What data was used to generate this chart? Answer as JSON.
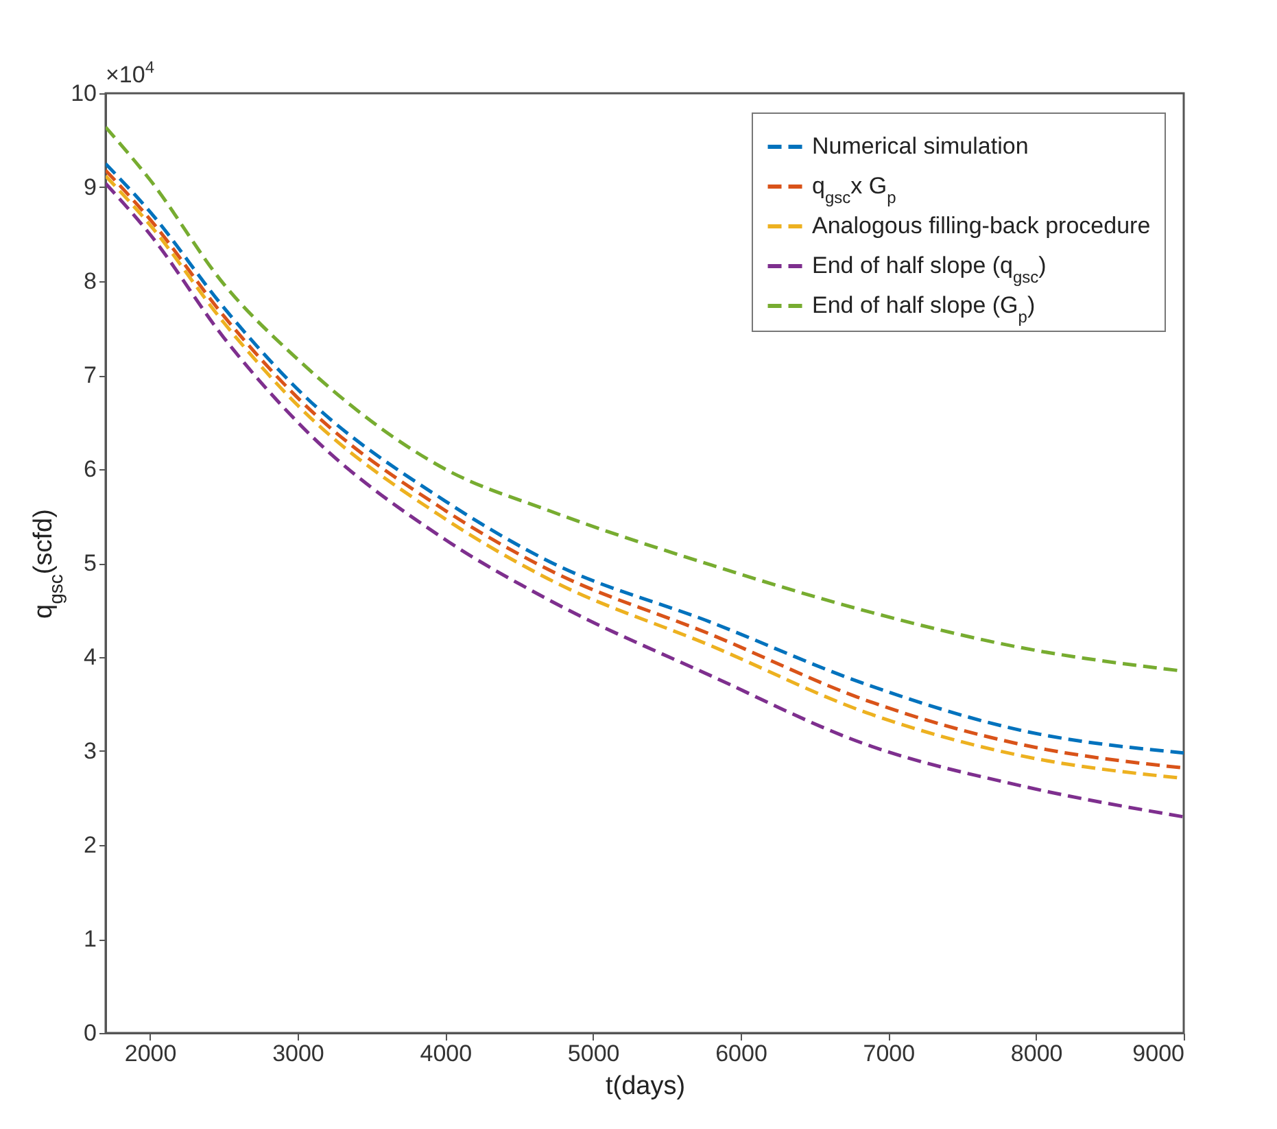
{
  "chart_data": {
    "type": "line",
    "xlabel": "t(days)",
    "ylabel": "q$_{gsc}$(scfd)",
    "annotations": [
      "×10$^{4}$"
    ],
    "x": [
      1700,
      2000,
      2500,
      3000,
      4000,
      4700,
      5800,
      6850,
      7900,
      9000
    ],
    "series": [
      {
        "name": "Numerical simulation",
        "color": "#0072bd",
        "values": [
          9.25,
          8.74,
          7.72,
          6.85,
          5.66,
          5.02,
          4.37,
          3.71,
          3.22,
          2.98
        ]
      },
      {
        "name": "q$_{gsc}$x G$_{p}$",
        "color": "#d95319",
        "values": [
          9.18,
          8.66,
          7.63,
          6.76,
          5.56,
          4.93,
          4.24,
          3.54,
          3.07,
          2.82
        ]
      },
      {
        "name": "Analogous filling-back procedure",
        "color": "#edb120",
        "values": [
          9.12,
          8.6,
          7.56,
          6.68,
          5.47,
          4.83,
          4.12,
          3.41,
          2.95,
          2.71
        ]
      },
      {
        "name": "End of half slope (q$_{gsc}$)",
        "color": "#7e2f8e",
        "values": [
          9.04,
          8.5,
          7.4,
          6.5,
          5.25,
          4.61,
          3.8,
          3.07,
          2.63,
          2.3
        ]
      },
      {
        "name": "End of half slope (G$_{p}$)",
        "color": "#77ac30",
        "values": [
          9.64,
          9.08,
          7.97,
          7.17,
          6.0,
          5.56,
          4.98,
          4.49,
          4.1,
          3.85
        ]
      }
    ],
    "xlim": [
      1700,
      9000
    ],
    "xticks": [
      2000,
      3000,
      4000,
      5000,
      6000,
      7000,
      8000,
      9000
    ],
    "ylim": [
      0,
      10
    ],
    "yticks": [
      0,
      1,
      2,
      3,
      4,
      5,
      6,
      7,
      8,
      9,
      10
    ],
    "legend": "top right",
    "line_style": "dashed",
    "grid": false
  }
}
